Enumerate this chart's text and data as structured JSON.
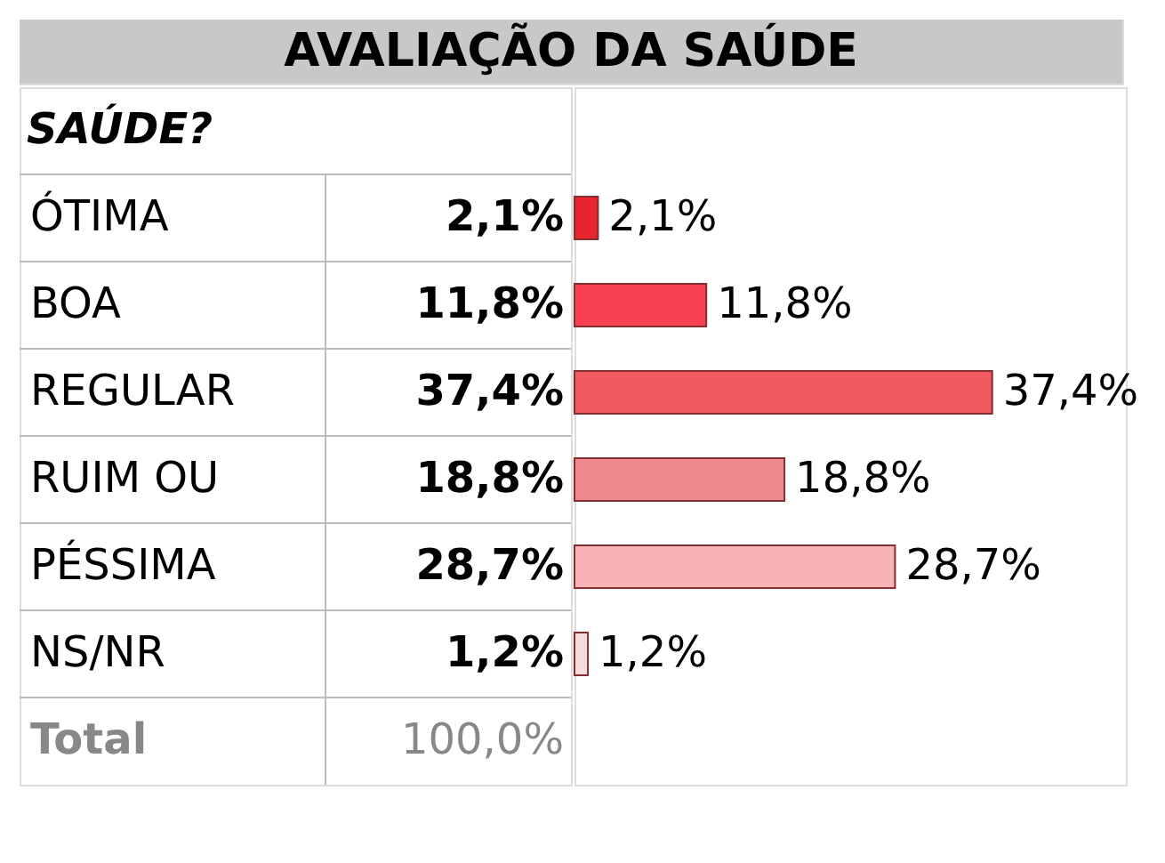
{
  "chart_data": {
    "type": "bar",
    "orientation": "horizontal",
    "title": "AVALIAÇÃO DA SAÚDE",
    "subtitle": "SAÚDE?",
    "categories": [
      "ÓTIMA",
      "BOA",
      "REGULAR",
      "RUIM OU",
      "PÉSSIMA",
      "NS/NR"
    ],
    "values": [
      2.1,
      11.8,
      37.4,
      18.8,
      28.7,
      1.2
    ],
    "colors": [
      "#e8242c",
      "#f84050",
      "#f05a60",
      "#f08890",
      "#f8b4b4",
      "#f8dcdc"
    ],
    "value_labels": [
      "2,1%",
      "11,8%",
      "37,4%",
      "18,8%",
      "28,7%",
      "1,2%"
    ],
    "annotations": [
      "Total",
      "100,0%"
    ]
  }
}
